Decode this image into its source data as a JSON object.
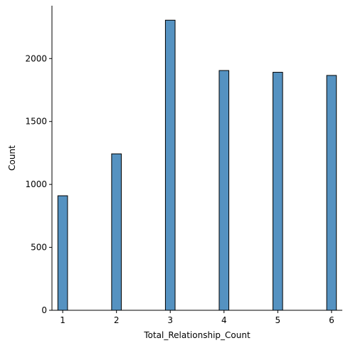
{
  "chart_data": {
    "type": "bar",
    "title": "",
    "xlabel": "Total_Relationship_Count",
    "ylabel": "Count",
    "x": [
      1,
      2,
      3,
      4,
      5,
      6
    ],
    "values": [
      910,
      1243,
      2305,
      1905,
      1891,
      1866
    ],
    "bin_width": 0.18,
    "xlim": [
      0.8,
      6.2
    ],
    "ylim": [
      0,
      2420
    ],
    "xticks": [
      1,
      2,
      3,
      4,
      5,
      6
    ],
    "yticks": [
      0,
      500,
      1000,
      1500,
      2000
    ],
    "grid": false,
    "legend": "none",
    "colors": {
      "bar_fill": "#5592c1",
      "bar_edge": "#000000",
      "axis": "#000000"
    }
  }
}
